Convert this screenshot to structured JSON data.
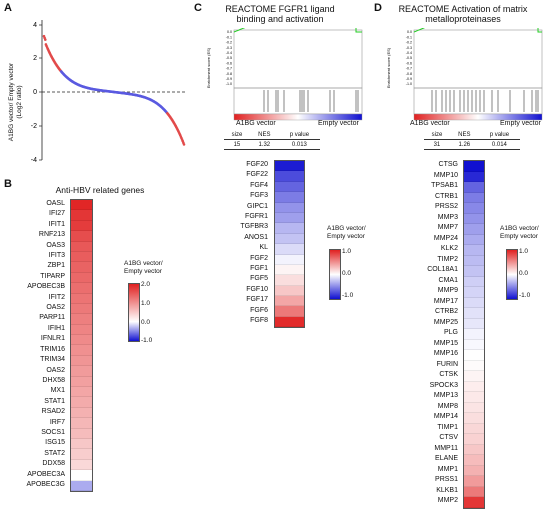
{
  "panels": {
    "a": {
      "label": "A",
      "ylabel_line1": "A1BG vector/ Empty vector",
      "ylabel_line2": "(Log2 ratio)",
      "yticks": [
        "4",
        "2",
        "0",
        "-2",
        "-4"
      ]
    },
    "b": {
      "label": "B",
      "title": "Anti-HBV related genes",
      "genes": [
        "OASL",
        "IFI27",
        "IFIT1",
        "RNF213",
        "OAS3",
        "IFIT3",
        "ZBP1",
        "TIPARP",
        "APOBEC3B",
        "IFIT2",
        "OAS2",
        "PARP11",
        "IFIH1",
        "IFNLR1",
        "TRIM16",
        "TRIM34",
        "OAS2",
        "DHX58",
        "MX1",
        "STAT1",
        "RSAD2",
        "IRF7",
        "SOCS1",
        "ISG15",
        "STAT2",
        "DDX58",
        "APOBEC3A",
        "APOBEC3G"
      ],
      "values": [
        1.95,
        1.8,
        1.75,
        1.6,
        1.5,
        1.45,
        1.4,
        1.35,
        1.3,
        1.25,
        1.2,
        1.15,
        1.1,
        1.05,
        1.0,
        0.95,
        0.9,
        0.85,
        0.8,
        0.75,
        0.7,
        0.65,
        0.6,
        0.5,
        0.45,
        0.35,
        0.0,
        -0.35
      ],
      "legend_title": [
        "A1BG vector/",
        "Empty vector"
      ],
      "legend_ticks": [
        "2.0",
        "1.0",
        "0.0",
        "-1.0"
      ],
      "legend_range": [
        -1.0,
        2.0
      ]
    },
    "c": {
      "label": "C",
      "title": [
        "REACTOME FGFR1 ligand",
        "binding and activation"
      ],
      "gsea_ylabel": "Enrichment score (ES)",
      "gsea_yticks": [
        "0.0",
        "-0.1",
        "-0.2",
        "-0.3",
        "-0.4",
        "-0.5",
        "-0.6",
        "-0.7",
        "-0.8",
        "-0.9",
        "-1.0"
      ],
      "left_label": "A1BG vector",
      "right_label": "Empty vector",
      "stats_header": [
        "size",
        "NES",
        "p value"
      ],
      "stats_values": [
        "15",
        "1.32",
        "0.013"
      ],
      "genes": [
        "FGF20",
        "FGF22",
        "FGF4",
        "FGF3",
        "GIPC1",
        "FGFR1",
        "TGFBR3",
        "ANOS1",
        "KL",
        "FGF2",
        "FGF1",
        "FGF5",
        "FGF10",
        "FGF17",
        "FGF6",
        "FGF8"
      ],
      "values": [
        -0.95,
        -0.75,
        -0.65,
        -0.55,
        -0.45,
        -0.4,
        -0.3,
        -0.25,
        -0.15,
        -0.05,
        0.05,
        0.15,
        0.25,
        0.4,
        0.6,
        0.95
      ],
      "legend_title": [
        "A1BG vector/",
        "Empty vector"
      ],
      "legend_ticks": [
        "1.0",
        "0.0",
        "-1.0"
      ],
      "legend_range": [
        -1.0,
        1.0
      ]
    },
    "d": {
      "label": "D",
      "title": [
        "REACTOME Activation of matrix",
        "metalloproteinases"
      ],
      "gsea_ylabel": "Enrichment score (ES)",
      "gsea_yticks": [
        "0.0",
        "-0.1",
        "-0.2",
        "-0.3",
        "-0.4",
        "-0.5",
        "-0.6",
        "-0.7",
        "-0.8",
        "-0.9",
        "-1.0"
      ],
      "left_label": "A1BG vector",
      "right_label": "Empty vector",
      "stats_header": [
        "size",
        "NES",
        "p value"
      ],
      "stats_values": [
        "31",
        "1.26",
        "0.014"
      ],
      "genes": [
        "CTSG",
        "MMP10",
        "TPSAB1",
        "CTRB1",
        "PRSS2",
        "MMP3",
        "MMP7",
        "MMP24",
        "KLK2",
        "TIMP2",
        "COL18A1",
        "CMA1",
        "MMP9",
        "MMP17",
        "CTRB2",
        "MMP25",
        "PLG",
        "MMP15",
        "MMP16",
        "FURIN",
        "CTSK",
        "SPOCK3",
        "MMP13",
        "MMP8",
        "MMP14",
        "TIMP1",
        "CTSV",
        "MMP11",
        "ELANE",
        "MMP1",
        "PRSS1",
        "KLKB1",
        "MMP2"
      ],
      "values": [
        -1.0,
        -0.9,
        -0.65,
        -0.55,
        -0.5,
        -0.45,
        -0.4,
        -0.35,
        -0.3,
        -0.28,
        -0.25,
        -0.2,
        -0.18,
        -0.15,
        -0.12,
        -0.1,
        -0.05,
        -0.03,
        0.0,
        0.02,
        0.05,
        0.08,
        0.1,
        0.12,
        0.15,
        0.18,
        0.2,
        0.25,
        0.3,
        0.35,
        0.45,
        0.6,
        0.9
      ],
      "legend_title": [
        "A1BG vector/",
        "Empty vector"
      ],
      "legend_ticks": [
        "1.0",
        "0.0",
        "-1.0"
      ],
      "legend_range": [
        -1.0,
        1.0
      ]
    }
  },
  "colors": {
    "high": "#e02020",
    "mid": "#ffffff",
    "low": "#1010d0",
    "gsea_line": "#22cc22",
    "scatter_up": "#e24a4a",
    "scatter_down": "#5a5ae0"
  }
}
